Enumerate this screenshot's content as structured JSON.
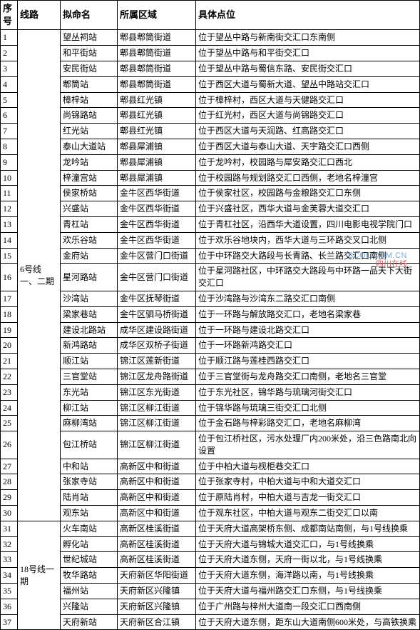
{
  "headers": {
    "seq": "序号",
    "line": "线路",
    "name": "拟命名",
    "area": "所属区域",
    "loc": "具体点位"
  },
  "groups": [
    {
      "line_label": "6号线一、二期",
      "rows": [
        {
          "seq": "1",
          "name": "望丛祠站",
          "area": "郫县郫筒街道",
          "loc": "位于望丛中路与新南街交汇口东南侧"
        },
        {
          "seq": "2",
          "name": "和平街站",
          "area": "郫县郫筒街道",
          "loc": "位于望丛中路与和平街交汇口"
        },
        {
          "seq": "3",
          "name": "安民街站",
          "area": "郫县郫筒街道",
          "loc": "位于望丛中路与蜀信东路、安民街交汇口"
        },
        {
          "seq": "4",
          "name": "郫筒站",
          "area": "郫县郫筒街道",
          "loc": "位于西区大道与蜀新大道、望丛中路站交汇口"
        },
        {
          "seq": "5",
          "name": "樟梓站",
          "area": "郫县红光镇",
          "loc": "位于樟梓村，西区大道与天健路交汇口"
        },
        {
          "seq": "6",
          "name": "尚锦路站",
          "area": "郫县红光镇",
          "loc": "位于红光村，西区大道与尚锦路交汇口"
        },
        {
          "seq": "7",
          "name": "红光站",
          "area": "郫县红光镇",
          "loc": "位于西区大道与天润路、红高路交汇口"
        },
        {
          "seq": "8",
          "name": "泰山大道站",
          "area": "郫县犀浦镇",
          "loc": "位于西区大道与泰山大道、天宇路交汇口西侧"
        },
        {
          "seq": "9",
          "name": "龙吟站",
          "area": "郫县犀浦镇",
          "loc": "位于龙吟村，校园路与犀安路交汇口西北"
        },
        {
          "seq": "10",
          "name": "梓潼宫站",
          "area": "郫县犀浦镇",
          "loc": "位于校园路与规划路交汇口西侧，老地名梓潼宫"
        },
        {
          "seq": "11",
          "name": "侯家桥站",
          "area": "金牛区西华街道",
          "loc": "位于侯家社区，校园路与金粮路交汇口东侧"
        },
        {
          "seq": "12",
          "name": "兴盛站",
          "area": "金牛区西华街道",
          "loc": "位于兴盛社区，西华大道与金芙蓉大道交汇口"
        },
        {
          "seq": "13",
          "name": "青杠站",
          "area": "金牛区西华街道",
          "loc": "位于青杠社区，沿西华大道设置，四川电影电视学院门口"
        },
        {
          "seq": "14",
          "name": "欢乐谷站",
          "area": "金牛区西华街道",
          "loc": "位于欢乐谷地块内，西华大道与三环路交叉口北侧"
        },
        {
          "seq": "15",
          "name": "金府站",
          "area": "金牛区营门口街道",
          "loc": "位于中环路交大路段与长青路、长兰路交汇口南侧"
        },
        {
          "seq": "16",
          "name": "星河路站",
          "area": "金牛区营门口街道",
          "loc": "位于星河路社区，中环路交大路段与中环路一品天下大街交汇口"
        },
        {
          "seq": "17",
          "name": "沙湾站",
          "area": "金牛区抚琴街道",
          "loc": "位于沙湾路与沙湾东二路交汇口南侧"
        },
        {
          "seq": "18",
          "name": "梁家巷站",
          "area": "金牛区驷马桥街道",
          "loc": "位于一环路与解放路交汇口，老地名梁家巷"
        },
        {
          "seq": "19",
          "name": "建设北路站",
          "area": "成华区建设路街道",
          "loc": "位于一环路与建设北路交汇口"
        },
        {
          "seq": "20",
          "name": "新鸿路站",
          "area": "成华区双桥子街道",
          "loc": "位于一环路新鸿路交汇口"
        },
        {
          "seq": "21",
          "name": "顺江站",
          "area": "锦江区莲新街道",
          "loc": "位于顺江路与莲桂西路交汇口"
        },
        {
          "seq": "22",
          "name": "三官堂站",
          "area": "锦江区龙舟路街道",
          "loc": "位于三官堂街与龙舟路交汇口南侧，老地名三官堂"
        },
        {
          "seq": "23",
          "name": "东光站",
          "area": "锦江区东光街道",
          "loc": "位于东光社区，锦华路与琉璃河街交汇口"
        },
        {
          "seq": "24",
          "name": "柳江站",
          "area": "锦江区柳江街道",
          "loc": "位于锦华路与琉璃三街交汇口北侧"
        },
        {
          "seq": "25",
          "name": "麻柳湾站",
          "area": "锦江区柳江街道",
          "loc": "位于金石路与梓彩路交汇口，老地名麻柳湾"
        },
        {
          "seq": "26",
          "name": "包江桥站",
          "area": "锦江区柳江街道",
          "loc": "位于包江桥社区，污水处理厂内200米处，沿三色路南北向设置"
        },
        {
          "seq": "27",
          "name": "中和站",
          "area": "高新区中和街道",
          "loc": "位于中柏大道与枧柜巷交汇口"
        },
        {
          "seq": "28",
          "name": "张家寺站",
          "area": "高新区中和街道",
          "loc": "位于张家寺村，中柏大道与中和大道交汇口"
        },
        {
          "seq": "29",
          "name": "陆肖站",
          "area": "高新区中和街道",
          "loc": "位于原陆肖村，中柏大道与吉龙一街交汇口"
        },
        {
          "seq": "30",
          "name": "观东站",
          "area": "高新区中和街道",
          "loc": "位于观东社区，中柏大道与观东二街交汇口以南"
        }
      ]
    },
    {
      "line_label": "18号线一期",
      "rows": [
        {
          "seq": "31",
          "name": "火车南站",
          "area": "高新区桂溪街道",
          "loc": "位于天府大道高架桥东侧、成都南站南侧，与1号线换乘"
        },
        {
          "seq": "32",
          "name": "孵化站",
          "area": "高新区桂溪街道",
          "loc": "位于天府大道与锦城大道交汇口，与1号线换乘"
        },
        {
          "seq": "33",
          "name": "世纪城站",
          "area": "高新区桂溪街道",
          "loc": "位于天府大道东侧，天府一街以北，与1号线换乘"
        },
        {
          "seq": "34",
          "name": "牧华路站",
          "area": "天府新区华阳街道",
          "loc": "位于天府大道东侧，海洋路以南，与1号线换乘"
        },
        {
          "seq": "35",
          "name": "福州站",
          "area": "天府新区兴隆镇",
          "loc": "位于天府大道与福州路交汇口东侧，与1号线换乘"
        },
        {
          "seq": "36",
          "name": "兴隆站",
          "area": "天府新区兴隆镇",
          "loc": "位于广州路与梓州大道南一段交汇口西南侧"
        },
        {
          "seq": "37",
          "name": "天府新站",
          "area": "天府新区合江镇",
          "loc": "位于天府大道东侧，距东山大道南侧600米处，与高铁换乘"
        }
      ]
    }
  ],
  "watermark": {
    "line1": "SCOL.COM.CN",
    "line2": "四川在线"
  }
}
